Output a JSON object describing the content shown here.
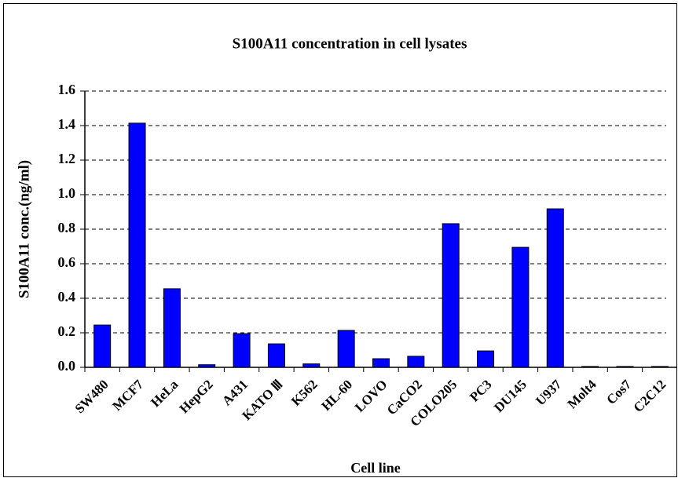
{
  "chart_data": {
    "type": "bar",
    "title": "S100A11 concentration in cell lysates",
    "x_label": "Cell line",
    "y_label": "S100A11 conc.(ng/ml)",
    "categories": [
      "SW480",
      "MCF7",
      "HeLa",
      "HepG2",
      "A431",
      "KATO Ⅲ",
      "K562",
      "HL-60",
      "LOVO",
      "CaCO2",
      "COLO205",
      "PC3",
      "DU145",
      "U937",
      "Molt4",
      "Cos7",
      "C2C12"
    ],
    "values": [
      0.245,
      1.414,
      0.455,
      0.015,
      0.195,
      0.136,
      0.02,
      0.214,
      0.05,
      0.064,
      0.832,
      0.095,
      0.695,
      0.918,
      0.005,
      0.005,
      0.005
    ],
    "color": "#0000ff",
    "ylim": [
      0,
      1.6
    ],
    "yticks": [
      {
        "value": 0,
        "label": "0.0"
      },
      {
        "value": 0.2,
        "label": "0.2"
      },
      {
        "value": 0.4,
        "label": "0.4"
      },
      {
        "value": 0.6,
        "label": "0.6"
      },
      {
        "value": 0.8,
        "label": "0.8"
      },
      {
        "value": 1.0,
        "label": "1.0"
      },
      {
        "value": 1.2,
        "label": "1.2"
      },
      {
        "value": 1.4,
        "label": "1.4"
      },
      {
        "value": 1.6,
        "label": "1.6"
      }
    ],
    "grid": true
  }
}
